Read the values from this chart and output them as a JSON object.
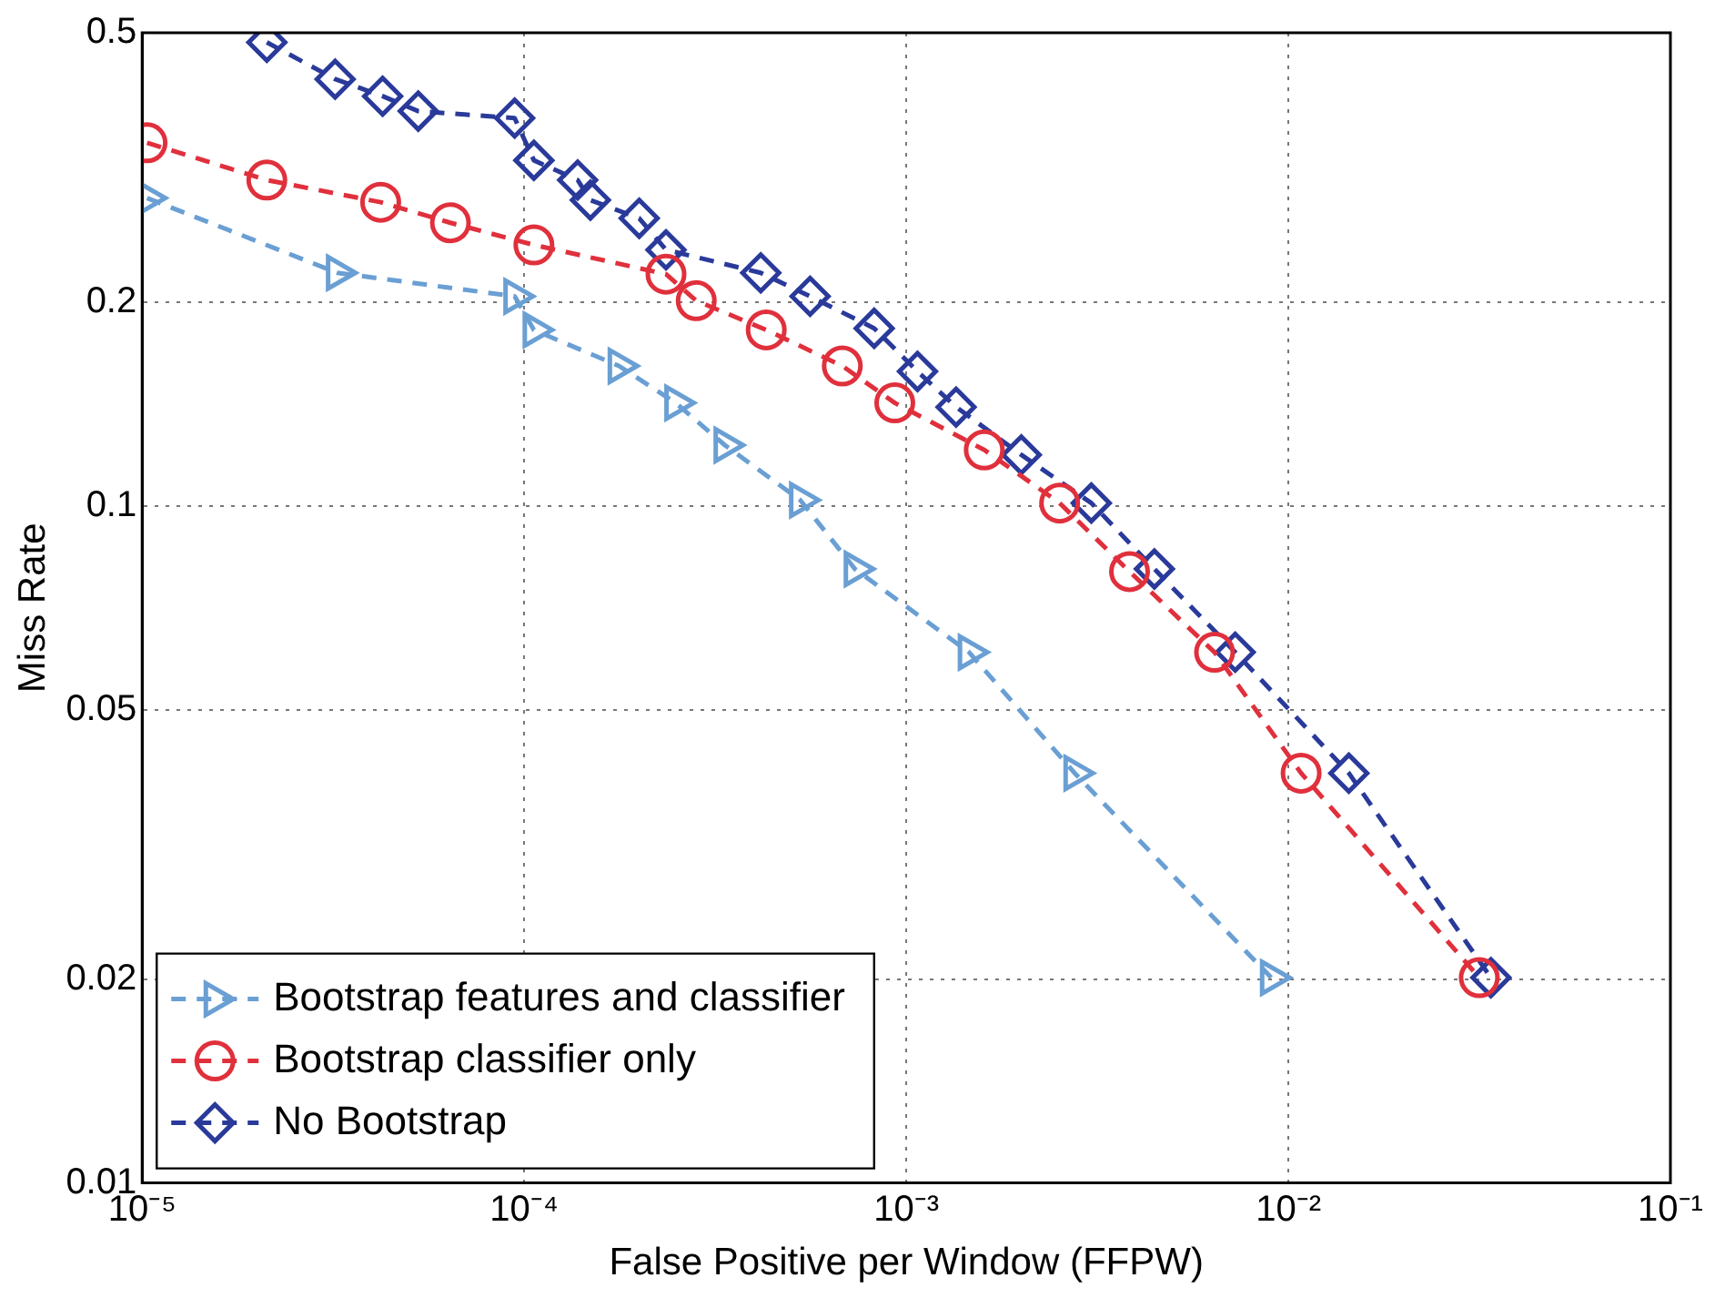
{
  "chart_data": {
    "type": "line",
    "xlabel": "False Positive per Window (FFPW)",
    "ylabel": "Miss Rate",
    "log": "xy",
    "grid": true,
    "legend": "bottom left",
    "line_style": "dashed",
    "xlim": [
      1e-05,
      0.1
    ],
    "xticks": [
      {
        "value": 1e-05,
        "label": "10⁻⁵"
      },
      {
        "value": 0.0001,
        "label": "10⁻⁴"
      },
      {
        "value": 0.001,
        "label": "10⁻³"
      },
      {
        "value": 0.01,
        "label": "10⁻²"
      },
      {
        "value": 0.1,
        "label": "10⁻¹"
      }
    ],
    "ylim": [
      0.01,
      0.5
    ],
    "yticks": [
      0.01,
      0.02,
      0.05,
      0.1,
      0.2,
      0.5
    ],
    "series": [
      {
        "name": "Bootstrap features and classifier",
        "color": "#6a9fd4",
        "marker": "triangle",
        "x": [
          1.03e-05,
          3.24e-05,
          9.44e-05,
          0.000106,
          0.000177,
          0.000249,
          0.000335,
          0.000528,
          0.000734,
          0.00146,
          0.00276,
          0.00902
        ],
        "values": [
          0.285,
          0.221,
          0.204,
          0.182,
          0.161,
          0.142,
          0.123,
          0.102,
          0.0807,
          0.0608,
          0.0403,
          0.0201
        ]
      },
      {
        "name": "Bootstrap classifier only",
        "color": "#e0303c",
        "marker": "circle",
        "x": [
          1.03e-05,
          2.12e-05,
          4.21e-05,
          6.41e-05,
          0.000106,
          0.000235,
          0.000282,
          0.00043,
          0.00068,
          0.000933,
          0.0016,
          0.00252,
          0.00384,
          0.00641,
          0.0108,
          0.0316
        ],
        "values": [
          0.344,
          0.303,
          0.281,
          0.262,
          0.243,
          0.22,
          0.201,
          0.182,
          0.161,
          0.142,
          0.121,
          0.101,
          0.08,
          0.0608,
          0.0403,
          0.0201
        ]
      },
      {
        "name": "No Bootstrap",
        "color": "#2a3a9a",
        "marker": "diamond",
        "x": [
          2.12e-05,
          3.2e-05,
          4.26e-05,
          5.28e-05,
          9.44e-05,
          0.000106,
          0.000138,
          0.000149,
          0.0002,
          0.000235,
          0.000416,
          0.00056,
          0.000824,
          0.00107,
          0.00135,
          0.002,
          0.00305,
          0.00446,
          0.00726,
          0.0144,
          0.0339
        ],
        "values": [
          0.484,
          0.427,
          0.403,
          0.383,
          0.374,
          0.324,
          0.303,
          0.283,
          0.266,
          0.239,
          0.221,
          0.204,
          0.183,
          0.158,
          0.14,
          0.119,
          0.101,
          0.0807,
          0.0608,
          0.0403,
          0.0201
        ]
      }
    ]
  }
}
